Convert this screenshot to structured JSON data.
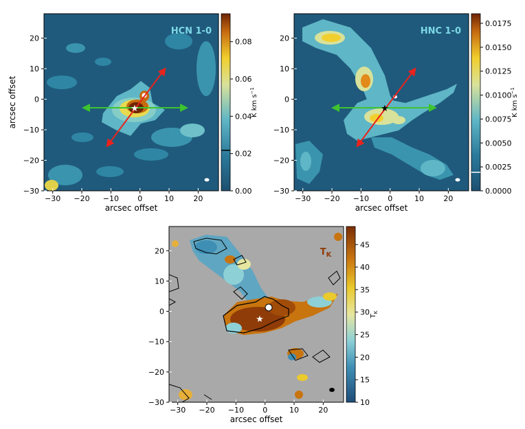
{
  "chart_data": [
    {
      "type": "heatmap",
      "title": "HCN 1-0",
      "xlabel": "arcsec offset",
      "ylabel": "arcsec offset",
      "xticks": [
        "−30",
        "−20",
        "−10",
        "0",
        "10",
        "20"
      ],
      "yticks": [
        "20",
        "10",
        "0",
        "−10",
        "−20",
        "−30"
      ],
      "xlim": [
        -33,
        27
      ],
      "ylim": [
        -30,
        28
      ],
      "colorbar": {
        "label": "K km s⁻¹",
        "range": [
          0,
          0.095
        ],
        "ticks": [
          "0.00",
          "0.02",
          "0.04",
          "0.06",
          "0.08"
        ],
        "contour_mark": 0.027
      },
      "star_marker_color": "#ffffff",
      "star_position": [
        -2,
        -2.5
      ],
      "arrows": [
        {
          "color": "#e8231c",
          "from": [
            -11.5,
            -15
          ],
          "to": [
            7.5,
            10
          ]
        },
        {
          "color": "#3ec42f",
          "from": [
            -19.5,
            -2.5
          ],
          "to": [
            15,
            -2.5
          ]
        }
      ],
      "colors": {
        "low": "#1f5a7c",
        "mid": "#5fb4c4",
        "high": "#f1d63a",
        "peak": "#7a2a05"
      }
    },
    {
      "type": "heatmap",
      "title": "HNC 1-0",
      "xlabel": "arcsec offset",
      "xticks": [
        "−30",
        "−20",
        "−10",
        "0",
        "10",
        "20"
      ],
      "yticks": [
        "20",
        "10",
        "0",
        "−10",
        "−20",
        "−30"
      ],
      "xlim": [
        -33,
        27
      ],
      "ylim": [
        -30,
        28
      ],
      "colorbar": {
        "label": "K km s⁻¹",
        "range": [
          0,
          0.0185
        ],
        "ticks": [
          "0.0000",
          "0.0025",
          "0.0050",
          "0.0075",
          "0.0100",
          "0.0125",
          "0.0150",
          "0.0175"
        ],
        "contour_mark": 0.0022
      },
      "star_marker_color": "#000000",
      "star_position": [
        -2,
        -2.5
      ],
      "arrows": [
        {
          "color": "#e8231c",
          "from": [
            -11.5,
            -15
          ],
          "to": [
            7.5,
            10
          ]
        },
        {
          "color": "#3ec42f",
          "from": [
            -19.5,
            -2.5
          ],
          "to": [
            14,
            -2.5
          ]
        }
      ]
    },
    {
      "type": "heatmap",
      "title": "TK",
      "xlabel": "arcsec offset",
      "xticks": [
        "−30",
        "−20",
        "−10",
        "0",
        "10",
        "20"
      ],
      "yticks": [
        "20",
        "10",
        "0",
        "−10",
        "−20",
        "−30"
      ],
      "xlim": [
        -33,
        27
      ],
      "ylim": [
        -30,
        28
      ],
      "colorbar": {
        "label": "Tₖ",
        "range": [
          10,
          49
        ],
        "ticks": [
          "10",
          "15",
          "20",
          "25",
          "30",
          "35",
          "40",
          "45"
        ]
      },
      "star_marker_color": "#ffffff",
      "star_position": [
        -2,
        -2.5
      ],
      "background": "#a9a9a9"
    }
  ],
  "labels": {
    "hcn_title": "HCN 1-0",
    "hnc_title": "HNC 1-0",
    "tk_title_main": "T",
    "tk_title_sub": "K",
    "xaxis": "arcsec offset",
    "yaxis": "arcsec offset",
    "cb_unit": "K km s",
    "cb_unit_sup": "−1",
    "tk_cb_main": "T",
    "tk_cb_sub": "K"
  }
}
